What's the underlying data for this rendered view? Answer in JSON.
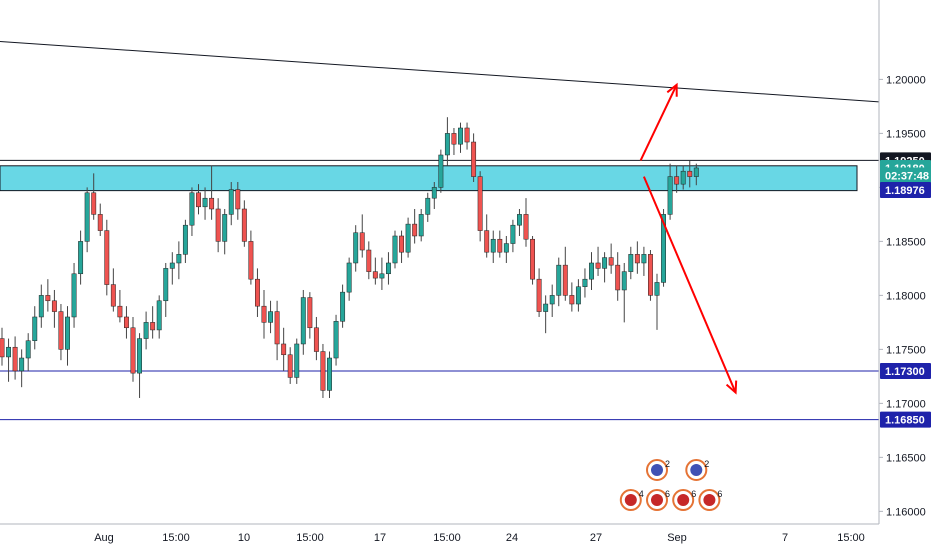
{
  "chart_data": {
    "type": "candlestick",
    "y_axis": {
      "ticks": [
        "1.20000",
        "1.19500",
        "1.19000",
        "1.18500",
        "1.18000",
        "1.17500",
        "1.17000",
        "1.16500",
        "1.16000"
      ],
      "range": [
        1.1592,
        1.2055
      ]
    },
    "x_axis": {
      "ticks": [
        "Aug",
        "15:00",
        "10",
        "15:00",
        "17",
        "15:00",
        "24",
        "27",
        "Sep",
        "7",
        "15:00"
      ]
    },
    "price_labels": [
      {
        "text": "1.19250",
        "value": 1.1925,
        "bg": "#131722",
        "fg": "#ffffff"
      },
      {
        "text": "1.19180",
        "value": 1.1918,
        "bg": "#26a69a",
        "fg": "#ffffff"
      },
      {
        "text": "02:37:48",
        "value": 1.1911,
        "bg": "#26a69a",
        "fg": "#ffffff"
      },
      {
        "text": "1.18976",
        "value": 1.18976,
        "bg": "#1e22aa",
        "fg": "#ffffff"
      },
      {
        "text": "1.17300",
        "value": 1.173,
        "bg": "#1e22aa",
        "fg": "#ffffff"
      },
      {
        "text": "1.16850",
        "value": 1.1685,
        "bg": "#1e22aa",
        "fg": "#ffffff"
      }
    ],
    "horizontal_lines": [
      {
        "value": 1.1925,
        "color": "#131722"
      },
      {
        "value": 1.173,
        "color": "#1e22aa"
      },
      {
        "value": 1.1685,
        "color": "#1e22aa"
      }
    ],
    "zone": {
      "top": 1.192,
      "bottom": 1.1897,
      "color": "#4dd0e1"
    },
    "trendline": {
      "from": {
        "index": 0,
        "value": 1.2035
      },
      "to": {
        "index": 120,
        "value": 1.1985
      }
    },
    "arrows": [
      {
        "direction": "up",
        "from": {
          "index": 97.5,
          "value": 1.1925
        },
        "to": {
          "index": 103,
          "value": 1.1995
        }
      },
      {
        "direction": "down",
        "from": {
          "index": 98,
          "value": 1.191
        },
        "to": {
          "index": 112,
          "value": 1.171
        }
      }
    ],
    "colors": {
      "up": "#26a69a",
      "down": "#ef5350",
      "wick": "#444444",
      "zone": "#4dd0e1",
      "line": "#1e22aa",
      "arrow": "#ff0000"
    },
    "candles": [
      [
        1.176,
        1.177,
        1.1735,
        1.1743
      ],
      [
        1.1743,
        1.176,
        1.172,
        1.1752
      ],
      [
        1.1752,
        1.1762,
        1.1722,
        1.173
      ],
      [
        1.173,
        1.175,
        1.1715,
        1.1742
      ],
      [
        1.1742,
        1.1765,
        1.173,
        1.1758
      ],
      [
        1.1758,
        1.179,
        1.175,
        1.178
      ],
      [
        1.178,
        1.181,
        1.177,
        1.18
      ],
      [
        1.18,
        1.1815,
        1.1785,
        1.1795
      ],
      [
        1.1795,
        1.1805,
        1.177,
        1.1785
      ],
      [
        1.1785,
        1.1792,
        1.174,
        1.175
      ],
      [
        1.175,
        1.179,
        1.1735,
        1.178
      ],
      [
        1.178,
        1.183,
        1.177,
        1.182
      ],
      [
        1.182,
        1.186,
        1.181,
        1.185
      ],
      [
        1.185,
        1.19,
        1.184,
        1.1895
      ],
      [
        1.1895,
        1.1913,
        1.187,
        1.1875
      ],
      [
        1.1875,
        1.1885,
        1.1855,
        1.186
      ],
      [
        1.186,
        1.187,
        1.18,
        1.181
      ],
      [
        1.181,
        1.1825,
        1.1785,
        1.179
      ],
      [
        1.179,
        1.1805,
        1.1775,
        1.178
      ],
      [
        1.178,
        1.179,
        1.176,
        1.177
      ],
      [
        1.177,
        1.178,
        1.172,
        1.1728
      ],
      [
        1.1728,
        1.1765,
        1.1705,
        1.176
      ],
      [
        1.176,
        1.1785,
        1.175,
        1.1775
      ],
      [
        1.1775,
        1.179,
        1.176,
        1.1768
      ],
      [
        1.1768,
        1.18,
        1.176,
        1.1795
      ],
      [
        1.1795,
        1.183,
        1.178,
        1.1825
      ],
      [
        1.1825,
        1.184,
        1.181,
        1.183
      ],
      [
        1.183,
        1.185,
        1.1815,
        1.1838
      ],
      [
        1.1838,
        1.187,
        1.183,
        1.1865
      ],
      [
        1.1865,
        1.19,
        1.1855,
        1.1895
      ],
      [
        1.1895,
        1.1903,
        1.1875,
        1.1882
      ],
      [
        1.1882,
        1.19,
        1.187,
        1.189
      ],
      [
        1.189,
        1.192,
        1.187,
        1.188
      ],
      [
        1.188,
        1.189,
        1.184,
        1.185
      ],
      [
        1.185,
        1.188,
        1.1838,
        1.1875
      ],
      [
        1.1875,
        1.1905,
        1.1865,
        1.1898
      ],
      [
        1.1898,
        1.1905,
        1.187,
        1.188
      ],
      [
        1.188,
        1.1888,
        1.1845,
        1.185
      ],
      [
        1.185,
        1.186,
        1.181,
        1.1815
      ],
      [
        1.1815,
        1.1825,
        1.178,
        1.179
      ],
      [
        1.179,
        1.1805,
        1.176,
        1.1775
      ],
      [
        1.1775,
        1.1795,
        1.1765,
        1.1785
      ],
      [
        1.1785,
        1.1795,
        1.174,
        1.1755
      ],
      [
        1.1755,
        1.177,
        1.173,
        1.1745
      ],
      [
        1.1745,
        1.1752,
        1.1718,
        1.1724
      ],
      [
        1.1724,
        1.176,
        1.1718,
        1.1755
      ],
      [
        1.1755,
        1.1805,
        1.1745,
        1.1798
      ],
      [
        1.1798,
        1.1803,
        1.176,
        1.177
      ],
      [
        1.177,
        1.178,
        1.174,
        1.1748
      ],
      [
        1.1748,
        1.1755,
        1.1705,
        1.1712
      ],
      [
        1.1712,
        1.1748,
        1.1705,
        1.1742
      ],
      [
        1.1742,
        1.1782,
        1.1735,
        1.1776
      ],
      [
        1.1776,
        1.181,
        1.177,
        1.1803
      ],
      [
        1.1803,
        1.1835,
        1.1795,
        1.183
      ],
      [
        1.183,
        1.1865,
        1.1822,
        1.1858
      ],
      [
        1.1858,
        1.1875,
        1.1835,
        1.1842
      ],
      [
        1.1842,
        1.185,
        1.1815,
        1.1822
      ],
      [
        1.1822,
        1.1835,
        1.181,
        1.1816
      ],
      [
        1.1816,
        1.1835,
        1.1805,
        1.182
      ],
      [
        1.182,
        1.184,
        1.181,
        1.183
      ],
      [
        1.183,
        1.186,
        1.1825,
        1.1855
      ],
      [
        1.1855,
        1.186,
        1.183,
        1.184
      ],
      [
        1.184,
        1.1872,
        1.1835,
        1.1866
      ],
      [
        1.1866,
        1.188,
        1.1848,
        1.1855
      ],
      [
        1.1855,
        1.188,
        1.185,
        1.1875
      ],
      [
        1.1875,
        1.1895,
        1.1868,
        1.189
      ],
      [
        1.189,
        1.1905,
        1.188,
        1.19
      ],
      [
        1.19,
        1.1935,
        1.1895,
        1.193
      ],
      [
        1.193,
        1.1965,
        1.192,
        1.195
      ],
      [
        1.195,
        1.1955,
        1.193,
        1.194
      ],
      [
        1.194,
        1.196,
        1.1932,
        1.1955
      ],
      [
        1.1955,
        1.196,
        1.1935,
        1.1942
      ],
      [
        1.1942,
        1.195,
        1.1905,
        1.191
      ],
      [
        1.191,
        1.1915,
        1.185,
        1.186
      ],
      [
        1.186,
        1.1875,
        1.1835,
        1.184
      ],
      [
        1.184,
        1.186,
        1.183,
        1.1852
      ],
      [
        1.1852,
        1.186,
        1.1835,
        1.184
      ],
      [
        1.184,
        1.1855,
        1.183,
        1.1848
      ],
      [
        1.1848,
        1.187,
        1.184,
        1.1865
      ],
      [
        1.1865,
        1.188,
        1.1855,
        1.1875
      ],
      [
        1.1875,
        1.189,
        1.1845,
        1.1852
      ],
      [
        1.1852,
        1.1855,
        1.181,
        1.1815
      ],
      [
        1.1815,
        1.1825,
        1.178,
        1.1785
      ],
      [
        1.1785,
        1.18,
        1.1765,
        1.1792
      ],
      [
        1.1792,
        1.181,
        1.178,
        1.18
      ],
      [
        1.18,
        1.1835,
        1.179,
        1.1828
      ],
      [
        1.1828,
        1.1845,
        1.1795,
        1.18
      ],
      [
        1.18,
        1.1812,
        1.1785,
        1.1792
      ],
      [
        1.1792,
        1.1815,
        1.1785,
        1.1808
      ],
      [
        1.1808,
        1.1825,
        1.1798,
        1.1815
      ],
      [
        1.1815,
        1.184,
        1.1805,
        1.183
      ],
      [
        1.183,
        1.1845,
        1.1818,
        1.1825
      ],
      [
        1.1825,
        1.184,
        1.1812,
        1.1835
      ],
      [
        1.1835,
        1.1848,
        1.182,
        1.1828
      ],
      [
        1.1828,
        1.184,
        1.1795,
        1.1805
      ],
      [
        1.1805,
        1.183,
        1.1775,
        1.1822
      ],
      [
        1.1822,
        1.1845,
        1.1815,
        1.1838
      ],
      [
        1.1838,
        1.185,
        1.182,
        1.183
      ],
      [
        1.183,
        1.1845,
        1.1818,
        1.1838
      ],
      [
        1.1838,
        1.1842,
        1.1795,
        1.18
      ],
      [
        1.18,
        1.182,
        1.1768,
        1.1812
      ],
      [
        1.1812,
        1.188,
        1.1808,
        1.1875
      ],
      [
        1.1875,
        1.1922,
        1.187,
        1.191
      ],
      [
        1.191,
        1.192,
        1.1895,
        1.1903
      ],
      [
        1.1903,
        1.192,
        1.1898,
        1.1915
      ],
      [
        1.1915,
        1.1925,
        1.19,
        1.191
      ],
      [
        1.191,
        1.1922,
        1.1902,
        1.1918
      ]
    ],
    "event_markers": [
      {
        "text": "2",
        "index": 100,
        "row": 1
      },
      {
        "text": "2",
        "index": 106,
        "row": 1
      },
      {
        "text": "4",
        "index": 96,
        "row": 2
      },
      {
        "text": "6",
        "index": 100,
        "row": 2
      },
      {
        "text": "6",
        "index": 104,
        "row": 2
      },
      {
        "text": "6",
        "index": 108,
        "row": 2
      }
    ]
  }
}
